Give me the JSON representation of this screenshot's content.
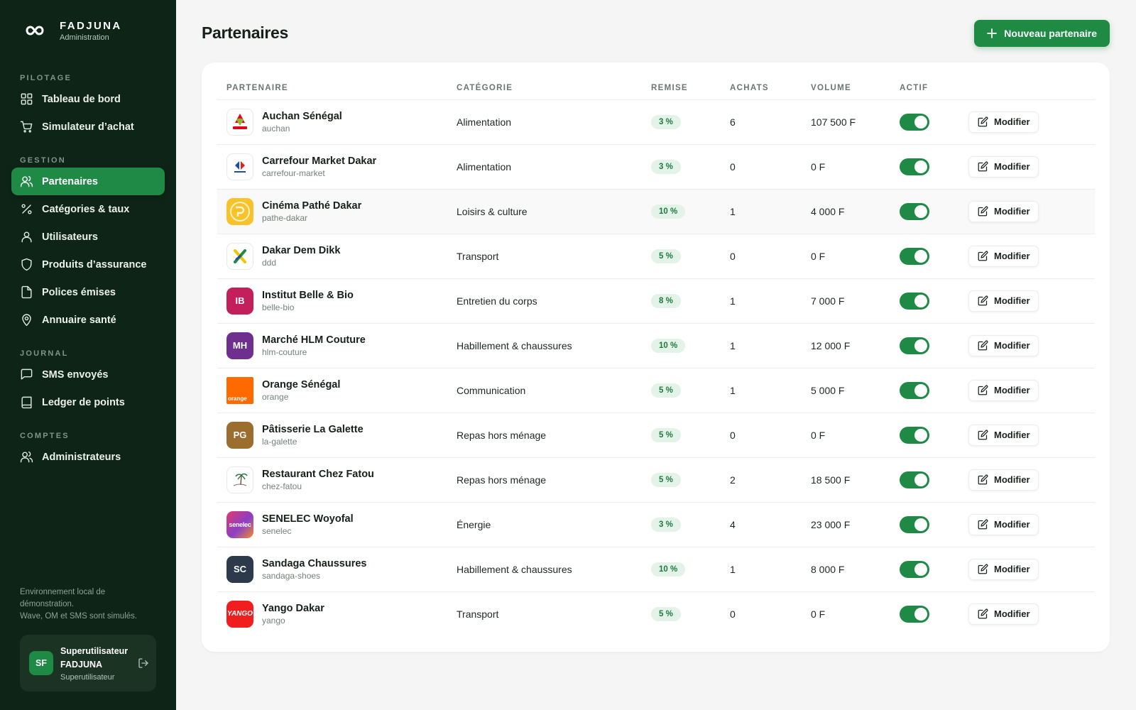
{
  "brand": {
    "name": "FADJUNA",
    "subtitle": "Administration"
  },
  "sidebar": {
    "sections": [
      {
        "label": "PILOTAGE",
        "items": [
          {
            "label": "Tableau de bord",
            "icon": "grid-icon"
          },
          {
            "label": "Simulateur d’achat",
            "icon": "cart-icon"
          }
        ]
      },
      {
        "label": "GESTION",
        "items": [
          {
            "label": "Partenaires",
            "icon": "users-icon",
            "active": true
          },
          {
            "label": "Catégories & taux",
            "icon": "percent-icon"
          },
          {
            "label": "Utilisateurs",
            "icon": "user-icon"
          },
          {
            "label": "Produits d’assurance",
            "icon": "shield-icon"
          },
          {
            "label": "Polices émises",
            "icon": "file-icon"
          },
          {
            "label": "Annuaire santé",
            "icon": "map-pin-icon"
          }
        ]
      },
      {
        "label": "JOURNAL",
        "items": [
          {
            "label": "SMS envoyés",
            "icon": "message-icon"
          },
          {
            "label": "Ledger de points",
            "icon": "book-icon"
          }
        ]
      },
      {
        "label": "COMPTES",
        "items": [
          {
            "label": "Administrateurs",
            "icon": "users-icon"
          }
        ]
      }
    ],
    "env_note_line1": "Environnement local de démonstration.",
    "env_note_line2": "Wave, OM et SMS sont simulés.",
    "user": {
      "initials": "SF",
      "name": "Superutilisateur FADJUNA",
      "role": "Superutilisateur"
    }
  },
  "page": {
    "title": "Partenaires",
    "new_button": "Nouveau partenaire"
  },
  "table": {
    "headers": {
      "partner": "PARTENAIRE",
      "category": "CATÉGORIE",
      "discount": "REMISE",
      "purchases": "ACHATS",
      "volume": "VOLUME",
      "active": "ACTIF"
    },
    "modify_label": "Modifier",
    "rows": [
      {
        "name": "Auchan Sénégal",
        "slug": "auchan",
        "category": "Alimentation",
        "discount": "3 %",
        "purchases": "6",
        "volume": "107 500 F",
        "active": true,
        "logo": "auchan"
      },
      {
        "name": "Carrefour Market Dakar",
        "slug": "carrefour-market",
        "category": "Alimentation",
        "discount": "3 %",
        "purchases": "0",
        "volume": "0 F",
        "active": true,
        "logo": "carrefour"
      },
      {
        "name": "Cinéma Pathé Dakar",
        "slug": "pathe-dakar",
        "category": "Loisirs & culture",
        "discount": "10 %",
        "purchases": "1",
        "volume": "4 000 F",
        "active": true,
        "logo": "pathe"
      },
      {
        "name": "Dakar Dem Dikk",
        "slug": "ddd",
        "category": "Transport",
        "discount": "5 %",
        "purchases": "0",
        "volume": "0 F",
        "active": true,
        "logo": "ddd"
      },
      {
        "name": "Institut Belle & Bio",
        "slug": "belle-bio",
        "category": "Entretien du corps",
        "discount": "8 %",
        "purchases": "1",
        "volume": "7 000 F",
        "active": true,
        "logo": "initials",
        "initials": "IB",
        "color": "#c21f5c"
      },
      {
        "name": "Marché HLM Couture",
        "slug": "hlm-couture",
        "category": "Habillement & chaussures",
        "discount": "10 %",
        "purchases": "1",
        "volume": "12 000 F",
        "active": true,
        "logo": "initials",
        "initials": "MH",
        "color": "#6e2f8f"
      },
      {
        "name": "Orange Sénégal",
        "slug": "orange",
        "category": "Communication",
        "discount": "5 %",
        "purchases": "1",
        "volume": "5 000 F",
        "active": true,
        "logo": "orange"
      },
      {
        "name": "Pâtisserie La Galette",
        "slug": "la-galette",
        "category": "Repas hors ménage",
        "discount": "5 %",
        "purchases": "0",
        "volume": "0 F",
        "active": true,
        "logo": "initials",
        "initials": "PG",
        "color": "#9b6d2f"
      },
      {
        "name": "Restaurant Chez Fatou",
        "slug": "chez-fatou",
        "category": "Repas hors ménage",
        "discount": "5 %",
        "purchases": "2",
        "volume": "18 500 F",
        "active": true,
        "logo": "chezfatou"
      },
      {
        "name": "SENELEC Woyofal",
        "slug": "senelec",
        "category": "Énergie",
        "discount": "3 %",
        "purchases": "4",
        "volume": "23 000 F",
        "active": true,
        "logo": "senelec"
      },
      {
        "name": "Sandaga Chaussures",
        "slug": "sandaga-shoes",
        "category": "Habillement & chaussures",
        "discount": "10 %",
        "purchases": "1",
        "volume": "8 000 F",
        "active": true,
        "logo": "initials",
        "initials": "SC",
        "color": "#2c3a4b"
      },
      {
        "name": "Yango Dakar",
        "slug": "yango",
        "category": "Transport",
        "discount": "5 %",
        "purchases": "0",
        "volume": "0 F",
        "active": true,
        "logo": "yango"
      }
    ]
  },
  "colors": {
    "sidebar_bg": "#0e2416",
    "accent": "#1f8a46",
    "pill_bg": "#e4f3e8",
    "pill_text": "#1d7a3f"
  }
}
